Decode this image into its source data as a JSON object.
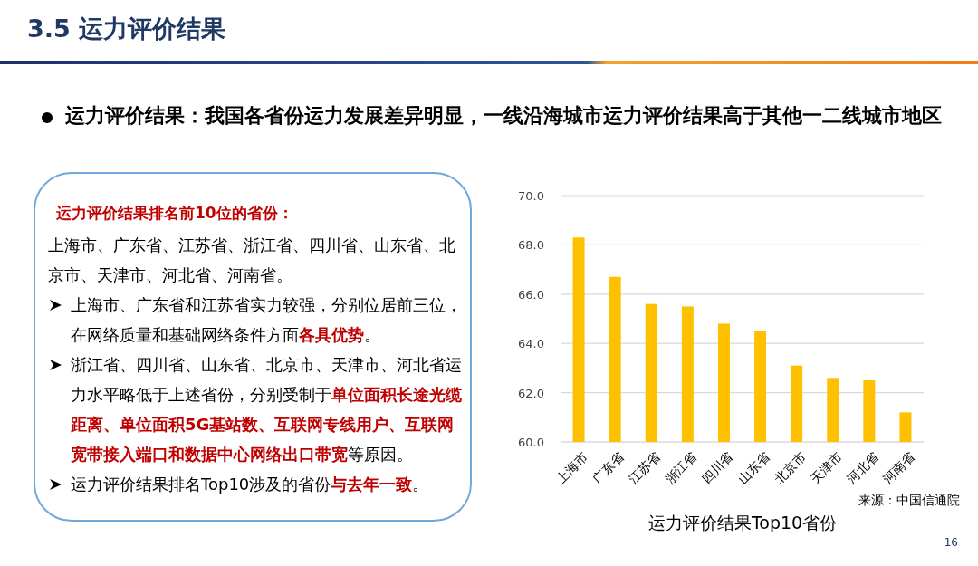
{
  "chart_data": {
    "type": "bar",
    "title": "运力评价结果Top10省份",
    "categories": [
      "上海市",
      "广东省",
      "江苏省",
      "浙江省",
      "四川省",
      "山东省",
      "北京市",
      "天津市",
      "河北省",
      "河南省"
    ],
    "values": [
      68.3,
      66.7,
      65.6,
      65.5,
      64.8,
      64.5,
      63.1,
      62.6,
      62.5,
      61.2
    ],
    "color": "#ffc000",
    "ylim": [
      60,
      70
    ],
    "yticks": [
      {
        "value": 60,
        "label": "60.0"
      },
      {
        "value": 62,
        "label": "62.0"
      },
      {
        "value": 64,
        "label": "64.0"
      },
      {
        "value": 66,
        "label": "66.0"
      },
      {
        "value": 68,
        "label": "68.0"
      },
      {
        "value": 70,
        "label": "70.0"
      }
    ],
    "grid": "y",
    "annotations": [
      "3.5 运力评价结果",
      "运力评价结果：我国各省份运力发展差异明显，一线沿海城市运力评价结果高于其他一二线城市地区",
      "运力评价结果排名前10位的省份：",
      "上海市、广东省、江苏省、浙江省、四川省、山东省、北京市、天津市、河北省、河南省。",
      "上海市、广东省和江苏省实力较强，分别位居前三位，在网络质量和基础网络条件方面**各具优势**。",
      "浙江省、四川省、山东省、北京市、天津市、河北省运力水平略低于上述省份，分别受制于**单位面积长途光缆距离、单位面积5G基站数、互联网专线用户、互联网宽带接入端口和数据中心网络出口带宽**等原因。",
      "运力评价结果排名Top10涉及的省份**与去年一致**。",
      "来源：中国信通院",
      "16"
    ]
  }
}
